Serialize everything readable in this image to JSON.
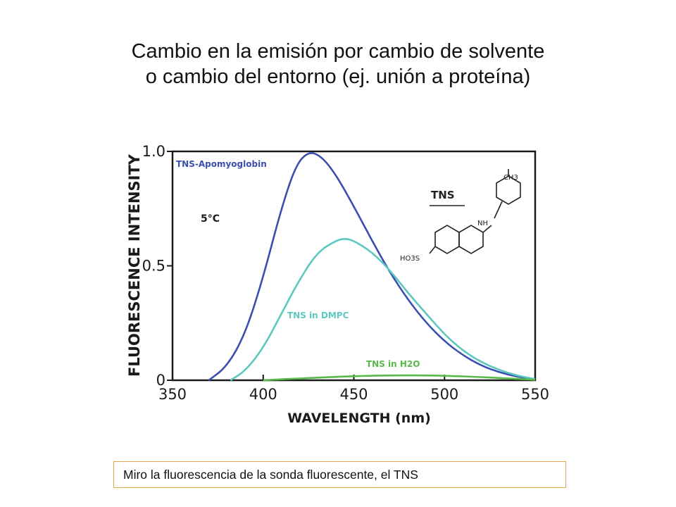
{
  "slide": {
    "title_line1": "Cambio en la emisión por cambio de solvente",
    "title_line2": "o cambio del entorno (ej. unión a proteína)",
    "caption": "Miro la fluorescencia de la sonda fluorescente, el TNS"
  },
  "chart_data": {
    "type": "line",
    "xlabel": "WAVELENGTH (nm)",
    "ylabel": "FLUORESCENCE INTENSITY",
    "xlim": [
      350,
      550
    ],
    "ylim": [
      0,
      1.0
    ],
    "x_ticks": [
      350,
      400,
      450,
      500,
      550
    ],
    "x_tick_labels": [
      "350",
      "400",
      "450",
      "500",
      "550"
    ],
    "y_ticks": [
      0,
      0.5,
      1.0
    ],
    "y_tick_labels": [
      "0",
      "0.5",
      "1.0"
    ],
    "grid": false,
    "annotations": {
      "temperature": "5°C",
      "structure_title": "TNS",
      "group_ch3": "CH3",
      "group_nh": "NH",
      "group_so3": "HO3S"
    },
    "series": [
      {
        "name": "TNS-Apomyoglobin",
        "color": "#3a4fb0",
        "points": [
          [
            370,
            0
          ],
          [
            380,
            0.06
          ],
          [
            390,
            0.2
          ],
          [
            400,
            0.45
          ],
          [
            410,
            0.75
          ],
          [
            418,
            0.94
          ],
          [
            425,
            1.0
          ],
          [
            432,
            0.98
          ],
          [
            440,
            0.9
          ],
          [
            450,
            0.76
          ],
          [
            460,
            0.61
          ],
          [
            470,
            0.47
          ],
          [
            480,
            0.35
          ],
          [
            490,
            0.25
          ],
          [
            500,
            0.17
          ],
          [
            510,
            0.11
          ],
          [
            520,
            0.065
          ],
          [
            530,
            0.035
          ],
          [
            540,
            0.015
          ],
          [
            550,
            0.005
          ]
        ]
      },
      {
        "name": "TNS in DMPC",
        "color": "#5ec8c0",
        "points": [
          [
            382,
            0
          ],
          [
            390,
            0.04
          ],
          [
            400,
            0.14
          ],
          [
            410,
            0.29
          ],
          [
            420,
            0.44
          ],
          [
            430,
            0.56
          ],
          [
            440,
            0.61
          ],
          [
            445,
            0.62
          ],
          [
            450,
            0.61
          ],
          [
            460,
            0.56
          ],
          [
            470,
            0.48
          ],
          [
            480,
            0.38
          ],
          [
            490,
            0.29
          ],
          [
            500,
            0.2
          ],
          [
            510,
            0.13
          ],
          [
            520,
            0.08
          ],
          [
            530,
            0.045
          ],
          [
            540,
            0.02
          ],
          [
            550,
            0.005
          ]
        ]
      },
      {
        "name": "TNS in H2O",
        "color": "#58b84a",
        "points": [
          [
            400,
            0
          ],
          [
            420,
            0.008
          ],
          [
            440,
            0.015
          ],
          [
            460,
            0.02
          ],
          [
            480,
            0.022
          ],
          [
            500,
            0.02
          ],
          [
            520,
            0.014
          ],
          [
            540,
            0.006
          ],
          [
            550,
            0.002
          ]
        ]
      }
    ]
  }
}
